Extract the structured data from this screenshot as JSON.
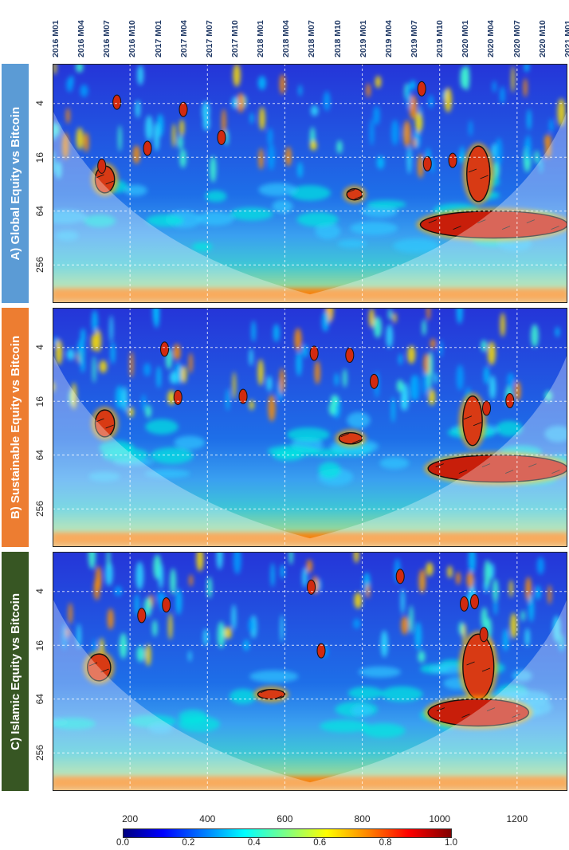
{
  "top_dates": [
    "2016 M01",
    "2016 M04",
    "2016 M07",
    "2016 M10",
    "2017 M01",
    "2017 M04",
    "2017 M07",
    "2017 M10",
    "2018 M01",
    "2018 M04",
    "2018 M07",
    "2018 M10",
    "2019 M01",
    "2019 M04",
    "2019 M07",
    "2019 M10",
    "2020 M01",
    "2020 M04",
    "2020 M07",
    "2020 M10",
    "2021 M01"
  ],
  "panels": [
    {
      "label": "A) Global Equity vs Bitcoin",
      "color": "#5b9bd5"
    },
    {
      "label": "B) Sustainable Equity vs Bitcoin",
      "color": "#ed7d31"
    },
    {
      "label": "C) Islamic Equity vs Bitcoin",
      "color": "#375623"
    }
  ],
  "colorbar": {
    "ticks": [
      "0.0",
      "0.2",
      "0.4",
      "0.6",
      "0.8",
      "1.0"
    ]
  },
  "chart_data": {
    "type": "heatmap",
    "subtype": "wavelet coherence",
    "x_ticks": [
      200,
      400,
      600,
      800,
      1000,
      1200
    ],
    "xlim": [
      0,
      1330
    ],
    "y_ticks": [
      "4",
      "16",
      "64",
      "256"
    ],
    "y_scale": "log2 (period, inverted)",
    "colorbar_range": [
      0.0,
      1.0
    ],
    "colormap": "jet",
    "panels": [
      {
        "name": "A) Global Equity vs Bitcoin",
        "regions": [
          {
            "time": [
              1070,
              1130
            ],
            "period": [
              12,
              50
            ],
            "coherence": 0.85
          },
          {
            "time": [
              950,
              1330
            ],
            "period": [
              64,
              128
            ],
            "coherence": 0.9
          },
          {
            "time": [
              110,
              160
            ],
            "period": [
              20,
              40
            ],
            "coherence": 0.8
          },
          {
            "time": [
              760,
              800
            ],
            "period": [
              36,
              48
            ],
            "coherence": 0.8
          }
        ]
      },
      {
        "name": "B) Sustainable Equity vs Bitcoin",
        "regions": [
          {
            "time": [
              1060,
              1110
            ],
            "period": [
              14,
              50
            ],
            "coherence": 0.85
          },
          {
            "time": [
              970,
              1330
            ],
            "period": [
              64,
              128
            ],
            "coherence": 0.9
          },
          {
            "time": [
              110,
              160
            ],
            "period": [
              20,
              40
            ],
            "coherence": 0.8
          },
          {
            "time": [
              740,
              800
            ],
            "period": [
              36,
              48
            ],
            "coherence": 0.8
          }
        ]
      },
      {
        "name": "C) Islamic Equity vs Bitcoin",
        "regions": [
          {
            "time": [
              1060,
              1140
            ],
            "period": [
              12,
              64
            ],
            "coherence": 0.85
          },
          {
            "time": [
              970,
              1230
            ],
            "period": [
              64,
              128
            ],
            "coherence": 0.9
          },
          {
            "time": [
              90,
              150
            ],
            "period": [
              20,
              40
            ],
            "coherence": 0.85
          },
          {
            "time": [
              530,
              600
            ],
            "period": [
              50,
              64
            ],
            "coherence": 0.8
          }
        ]
      }
    ]
  }
}
